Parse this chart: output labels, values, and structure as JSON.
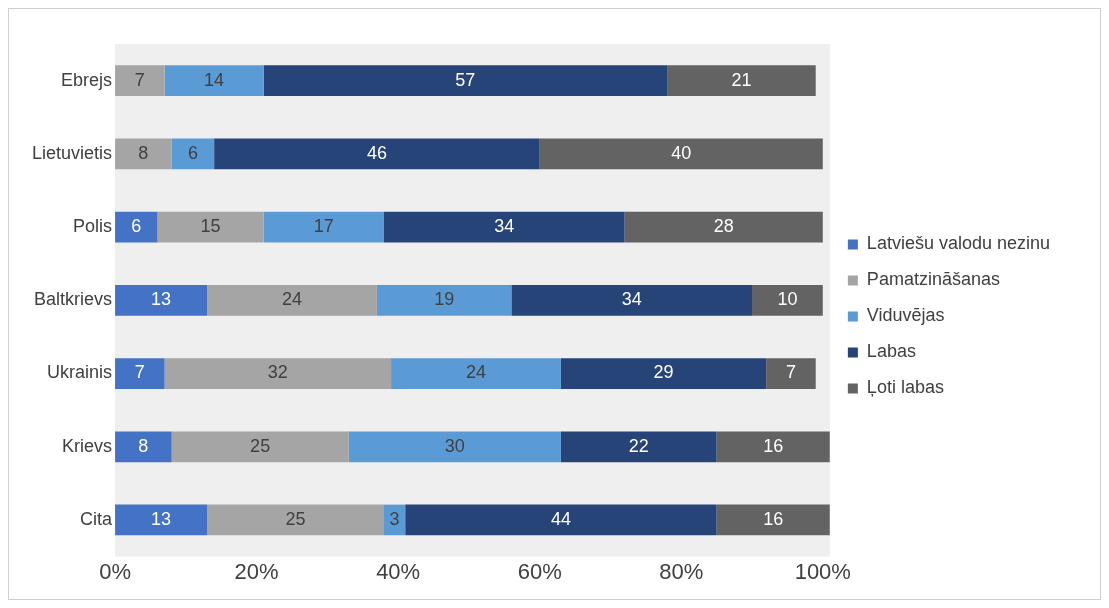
{
  "chart_data": {
    "type": "bar",
    "orientation": "horizontal",
    "stacked": true,
    "data_labels": true,
    "legend": "right",
    "grid": false,
    "categories": [
      "Ebrejs",
      "Lietuvietis",
      "Polis",
      "Baltkrievs",
      "Ukrainis",
      "Krievs",
      "Cita"
    ],
    "xlim": [
      0,
      101
    ],
    "xticks": [
      {
        "value": 0,
        "label": "0%"
      },
      {
        "value": 20,
        "label": "20%"
      },
      {
        "value": 40,
        "label": "40%"
      },
      {
        "value": 60,
        "label": "60%"
      },
      {
        "value": 80,
        "label": "80%"
      },
      {
        "value": 100,
        "label": "100%"
      }
    ],
    "series": [
      {
        "name": "Latviešu valodu nezinu",
        "color": "#4472c4",
        "values": [
          null,
          null,
          6,
          13,
          7,
          8,
          13
        ]
      },
      {
        "name": "Pamatzināšanas",
        "color": "#a5a5a5",
        "values": [
          7,
          8,
          15,
          24,
          32,
          25,
          25
        ]
      },
      {
        "name": "Viduvējas",
        "color": "#5b9bd5",
        "values": [
          14,
          6,
          17,
          19,
          24,
          30,
          3
        ]
      },
      {
        "name": "Labas",
        "color": "#264478",
        "values": [
          57,
          46,
          34,
          34,
          29,
          22,
          44
        ]
      },
      {
        "name": "Ļoti labas",
        "color": "#636363",
        "values": [
          21,
          40,
          28,
          10,
          7,
          16,
          16
        ]
      }
    ]
  }
}
